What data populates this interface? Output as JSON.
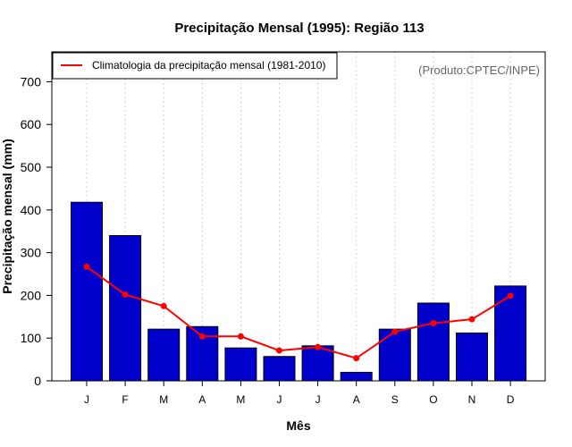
{
  "chart_data": {
    "type": "bar",
    "title": "Precipitação Mensal (1995): Região 113",
    "xlabel": "Mês",
    "ylabel": "Precipitação mensal (mm)",
    "ylim": [
      0,
      770
    ],
    "yticks": [
      0,
      100,
      200,
      300,
      400,
      500,
      600,
      700
    ],
    "grid": "vertical dotted",
    "categories": [
      "J",
      "F",
      "M",
      "A",
      "M",
      "J",
      "J",
      "A",
      "S",
      "O",
      "N",
      "D"
    ],
    "series": [
      {
        "name": "Precipitação mensal 1995",
        "type": "bar",
        "color": "#0000cd",
        "values": [
          418,
          340,
          121,
          127,
          77,
          57,
          82,
          20,
          121,
          182,
          112,
          222
        ]
      },
      {
        "name": "Climatologia da precipitação mensal (1981-2010)",
        "type": "line",
        "color": "#ff0000",
        "values": [
          267,
          202,
          175,
          104,
          104,
          71,
          79,
          53,
          115,
          135,
          144,
          199
        ]
      }
    ],
    "legend": {
      "label": "Climatologia da precipitação mensal (1981-2010)",
      "position": "top-left"
    },
    "annotation": "(Produto:CPTEC/INPE)"
  }
}
